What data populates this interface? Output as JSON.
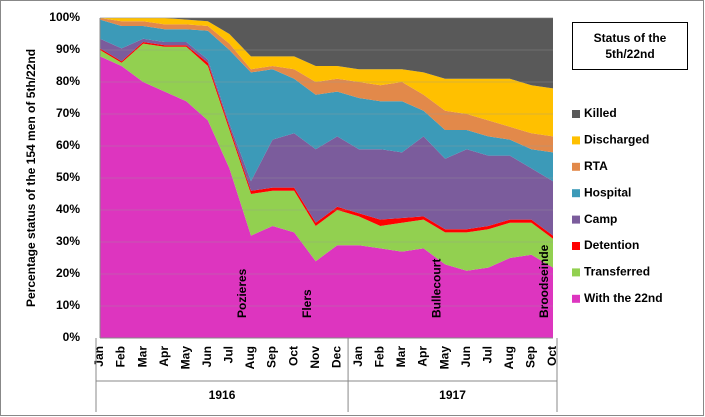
{
  "chart_data": {
    "type": "stacked_area",
    "title": "Status of the 5th/22nd",
    "y_label": "Percentage status of the 154  men of 5th/22nd",
    "categories": [
      "Jan",
      "Feb",
      "Mar",
      "Apr",
      "May",
      "Jun",
      "Jul",
      "Aug",
      "Sep",
      "Oct",
      "Nov",
      "Dec",
      "Jan",
      "Feb",
      "Mar",
      "Apr",
      "May",
      "Jun",
      "Jul",
      "Aug",
      "Sep",
      "Oct"
    ],
    "x_groups": [
      "1916",
      "1917"
    ],
    "ylim": [
      0,
      100
    ],
    "yticks": [
      {
        "value": 0,
        "label": "0%"
      },
      {
        "value": 10,
        "label": "10%"
      },
      {
        "value": 20,
        "label": "20%"
      },
      {
        "value": 30,
        "label": "30%"
      },
      {
        "value": 40,
        "label": "40%"
      },
      {
        "value": 50,
        "label": "50%"
      },
      {
        "value": 60,
        "label": "60%"
      },
      {
        "value": 70,
        "label": "70%"
      },
      {
        "value": 80,
        "label": "80%"
      },
      {
        "value": 90,
        "label": "90%"
      },
      {
        "value": 100,
        "label": "100%"
      }
    ],
    "grid": true,
    "legend": "right",
    "annotations": [
      {
        "text": "Pozieres",
        "at": 7
      },
      {
        "text": "Flers",
        "at": 10
      },
      {
        "text": "Bullecourt",
        "at": 16
      },
      {
        "text": "Broodseinde",
        "at": 21
      }
    ],
    "series": [
      {
        "name": "With the 22nd",
        "color": "#dd35bf",
        "values": [
          88,
          85,
          80,
          77,
          74,
          68,
          53,
          32,
          35,
          33,
          24,
          29,
          29,
          28,
          27,
          28,
          23,
          21,
          22,
          25,
          26,
          22
        ]
      },
      {
        "name": "Transferred",
        "color": "#92d050",
        "values": [
          2,
          1,
          12,
          14,
          17,
          17,
          12,
          13,
          11,
          13,
          11,
          11,
          9,
          7,
          9,
          9,
          10,
          12,
          12,
          11,
          10,
          9
        ]
      },
      {
        "name": "Detention",
        "color": "#ff0000",
        "values": [
          0.5,
          0.5,
          0.5,
          0.5,
          0.5,
          1,
          1,
          1,
          1,
          1,
          1,
          1,
          1,
          2,
          1.5,
          1,
          1,
          1,
          1,
          1,
          1,
          1
        ]
      },
      {
        "name": "Camp",
        "color": "#7b5c9c",
        "values": [
          3,
          4,
          1,
          1,
          1,
          1,
          1,
          3,
          15,
          17,
          23,
          22,
          20,
          22,
          20.5,
          25,
          22,
          25,
          22,
          20,
          16,
          17
        ]
      },
      {
        "name": "Hospital",
        "color": "#3c9ab8",
        "values": [
          6,
          7,
          4,
          4,
          4,
          9,
          23,
          34,
          22,
          17,
          17,
          14,
          16,
          15,
          16,
          8,
          9,
          6,
          6,
          5,
          6,
          9
        ]
      },
      {
        "name": "RTA",
        "color": "#e2894a",
        "values": [
          0.5,
          1.5,
          1.5,
          1.5,
          1.5,
          1.5,
          2,
          1,
          1,
          3,
          4,
          4,
          5,
          5,
          6,
          5,
          6,
          5,
          5,
          4,
          5,
          5
        ]
      },
      {
        "name": "Discharged",
        "color": "#ffc000",
        "values": [
          0,
          1,
          1,
          2,
          1.5,
          1.5,
          3,
          4,
          3,
          4,
          5,
          4,
          4,
          5,
          4,
          7,
          10,
          11,
          13,
          15,
          15,
          15
        ]
      },
      {
        "name": "Killed",
        "color": "#595959",
        "values": [
          0,
          0,
          0,
          0,
          0.5,
          1,
          5,
          12,
          12,
          12,
          15,
          15,
          16,
          16,
          16,
          17,
          19,
          19,
          19,
          19,
          21,
          22
        ]
      }
    ]
  }
}
